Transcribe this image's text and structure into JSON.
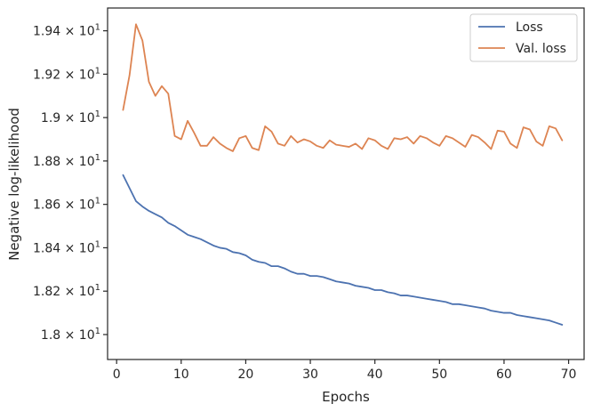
{
  "chart_data": {
    "type": "line",
    "xlabel": "Epochs",
    "ylabel": "Negative log-likelihood",
    "xlim": [
      -1.4,
      72.4
    ],
    "ylim": [
      17.885,
      19.505
    ],
    "x_ticks": [
      0,
      10,
      20,
      30,
      40,
      50,
      60,
      70
    ],
    "x_tick_labels": [
      "0",
      "10",
      "20",
      "30",
      "40",
      "50",
      "60",
      "70"
    ],
    "y_ticks": [
      18.0,
      18.2,
      18.4,
      18.6,
      18.8,
      19.0,
      19.2,
      19.4
    ],
    "y_tick_mantissas": [
      "1.8",
      "1.82",
      "1.84",
      "1.86",
      "1.88",
      "1.9",
      "1.92",
      "1.94"
    ],
    "y_tick_times": "×",
    "y_tick_base": "10",
    "y_tick_exponent": "1",
    "grid": false,
    "legend_position": "top-right",
    "series": [
      {
        "name": "Loss",
        "color": "#4c72b0",
        "x": [
          1,
          2,
          3,
          4,
          5,
          6,
          7,
          8,
          9,
          10,
          11,
          12,
          13,
          14,
          15,
          16,
          17,
          18,
          19,
          20,
          21,
          22,
          23,
          24,
          25,
          26,
          27,
          28,
          29,
          30,
          31,
          32,
          33,
          34,
          35,
          36,
          37,
          38,
          39,
          40,
          41,
          42,
          43,
          44,
          45,
          46,
          47,
          48,
          49,
          50,
          51,
          52,
          53,
          54,
          55,
          56,
          57,
          58,
          59,
          60,
          61,
          62,
          63,
          64,
          65,
          66,
          67,
          68,
          69
        ],
        "values": [
          18.735,
          18.675,
          18.615,
          18.59,
          18.57,
          18.555,
          18.54,
          18.515,
          18.5,
          18.48,
          18.46,
          18.45,
          18.44,
          18.425,
          18.41,
          18.4,
          18.395,
          18.38,
          18.375,
          18.365,
          18.345,
          18.335,
          18.33,
          18.315,
          18.315,
          18.305,
          18.29,
          18.28,
          18.28,
          18.27,
          18.27,
          18.265,
          18.255,
          18.245,
          18.24,
          18.235,
          18.225,
          18.22,
          18.215,
          18.205,
          18.205,
          18.195,
          18.19,
          18.18,
          18.18,
          18.175,
          18.17,
          18.165,
          18.16,
          18.155,
          18.15,
          18.14,
          18.14,
          18.135,
          18.13,
          18.125,
          18.12,
          18.11,
          18.105,
          18.1,
          18.1,
          18.09,
          18.085,
          18.08,
          18.075,
          18.07,
          18.065,
          18.055,
          18.045
        ]
      },
      {
        "name": "Val. loss",
        "color": "#dd8452",
        "x": [
          1,
          2,
          3,
          4,
          5,
          6,
          7,
          8,
          9,
          10,
          11,
          12,
          13,
          14,
          15,
          16,
          17,
          18,
          19,
          20,
          21,
          22,
          23,
          24,
          25,
          26,
          27,
          28,
          29,
          30,
          31,
          32,
          33,
          34,
          35,
          36,
          37,
          38,
          39,
          40,
          41,
          42,
          43,
          44,
          45,
          46,
          47,
          48,
          49,
          50,
          51,
          52,
          53,
          54,
          55,
          56,
          57,
          58,
          59,
          60,
          61,
          62,
          63,
          64,
          65,
          66,
          67,
          68,
          69
        ],
        "values": [
          19.035,
          19.195,
          19.43,
          19.355,
          19.165,
          19.1,
          19.145,
          19.11,
          18.915,
          18.9,
          18.985,
          18.93,
          18.87,
          18.87,
          18.91,
          18.88,
          18.86,
          18.845,
          18.905,
          18.915,
          18.86,
          18.85,
          18.96,
          18.935,
          18.88,
          18.87,
          18.915,
          18.885,
          18.9,
          18.89,
          18.87,
          18.86,
          18.895,
          18.875,
          18.87,
          18.865,
          18.88,
          18.855,
          18.905,
          18.895,
          18.87,
          18.855,
          18.905,
          18.9,
          18.91,
          18.88,
          18.915,
          18.905,
          18.885,
          18.87,
          18.915,
          18.905,
          18.885,
          18.865,
          18.92,
          18.91,
          18.885,
          18.855,
          18.94,
          18.935,
          18.88,
          18.86,
          18.955,
          18.945,
          18.89,
          18.87,
          18.96,
          18.95,
          18.895
        ]
      }
    ]
  }
}
